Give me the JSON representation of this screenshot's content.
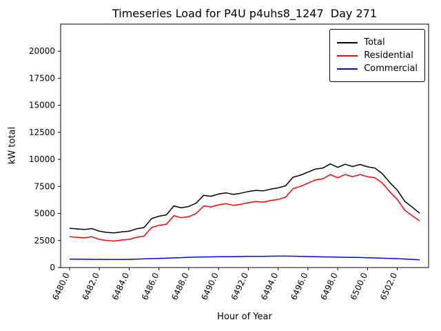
{
  "title": "Timeseries Load for P4U p4uhs8_1247  Day 271",
  "xlabel": "Hour of Year",
  "ylabel": "kW total",
  "legend": [
    {
      "label": "Total",
      "color": "#000000"
    },
    {
      "label": "Residential",
      "color": "#ff0000"
    },
    {
      "label": "Commercial",
      "color": "#0000ff"
    }
  ],
  "chart_data": {
    "type": "line",
    "title": "Timeseries Load for P4U p4uhs8_1247  Day 271",
    "xlabel": "Hour of Year",
    "ylabel": "kW total",
    "xlim": [
      6479.4,
      6504.1
    ],
    "ylim": [
      0,
      22500
    ],
    "grid": false,
    "legend_position": "upper right",
    "x_ticks": [
      {
        "value": 6480,
        "label": "6480.0"
      },
      {
        "value": 6482,
        "label": "6482.0"
      },
      {
        "value": 6484,
        "label": "6484.0"
      },
      {
        "value": 6486,
        "label": "6486.0"
      },
      {
        "value": 6488,
        "label": "6488.0"
      },
      {
        "value": 6490,
        "label": "6490.0"
      },
      {
        "value": 6492,
        "label": "6492.0"
      },
      {
        "value": 6494,
        "label": "6494.0"
      },
      {
        "value": 6496,
        "label": "6496.0"
      },
      {
        "value": 6498,
        "label": "6498.0"
      },
      {
        "value": 6500,
        "label": "6500.0"
      },
      {
        "value": 6502,
        "label": "6502.0"
      }
    ],
    "y_ticks": [
      {
        "value": 0,
        "label": "0"
      },
      {
        "value": 2500,
        "label": "2500"
      },
      {
        "value": 5000,
        "label": "5000"
      },
      {
        "value": 7500,
        "label": "7500"
      },
      {
        "value": 10000,
        "label": "10000"
      },
      {
        "value": 12500,
        "label": "12500"
      },
      {
        "value": 15000,
        "label": "15000"
      },
      {
        "value": 17500,
        "label": "17500"
      },
      {
        "value": 20000,
        "label": "20000"
      }
    ],
    "x": [
      6480.0,
      6480.5,
      6481.0,
      6481.5,
      6482.0,
      6482.5,
      6483.0,
      6483.5,
      6484.0,
      6484.5,
      6485.0,
      6485.5,
      6486.0,
      6486.5,
      6487.0,
      6487.5,
      6488.0,
      6488.5,
      6489.0,
      6489.5,
      6490.0,
      6490.5,
      6491.0,
      6491.5,
      6492.0,
      6492.5,
      6493.0,
      6493.5,
      6494.0,
      6494.5,
      6495.0,
      6495.5,
      6496.0,
      6496.5,
      6497.0,
      6497.5,
      6498.0,
      6498.5,
      6499.0,
      6499.5,
      6500.0,
      6500.5,
      6501.0,
      6501.5,
      6502.0,
      6502.5,
      6503.0,
      6503.5
    ],
    "series": [
      {
        "name": "Total",
        "color": "#000000",
        "values": [
          3630,
          3570,
          3520,
          3610,
          3360,
          3250,
          3200,
          3300,
          3360,
          3580,
          3700,
          4520,
          4750,
          4870,
          5700,
          5520,
          5650,
          5960,
          6680,
          6590,
          6800,
          6900,
          6760,
          6870,
          7030,
          7130,
          7090,
          7250,
          7360,
          7560,
          8350,
          8540,
          8820,
          9100,
          9190,
          9580,
          9260,
          9550,
          9340,
          9530,
          9310,
          9190,
          8670,
          7850,
          7150,
          6120,
          5590,
          5020
        ]
      },
      {
        "name": "Residential",
        "color": "#ff0000",
        "values": [
          2850,
          2800,
          2750,
          2850,
          2600,
          2500,
          2450,
          2550,
          2600,
          2800,
          2900,
          3700,
          3900,
          4000,
          4800,
          4600,
          4700,
          5000,
          5700,
          5600,
          5800,
          5900,
          5750,
          5850,
          6000,
          6100,
          6050,
          6200,
          6300,
          6500,
          7300,
          7500,
          7800,
          8100,
          8200,
          8600,
          8300,
          8600,
          8400,
          8600,
          8400,
          8300,
          7800,
          7000,
          6300,
          5300,
          4800,
          4300
        ]
      },
      {
        "name": "Commercial",
        "color": "#0000ff",
        "values": [
          780,
          770,
          770,
          760,
          760,
          750,
          750,
          750,
          760,
          780,
          800,
          820,
          850,
          870,
          900,
          920,
          950,
          960,
          980,
          990,
          1000,
          1000,
          1010,
          1020,
          1030,
          1030,
          1040,
          1050,
          1060,
          1060,
          1050,
          1040,
          1020,
          1000,
          990,
          980,
          960,
          950,
          940,
          930,
          910,
          890,
          870,
          850,
          820,
          790,
          760,
          720
        ]
      }
    ]
  }
}
